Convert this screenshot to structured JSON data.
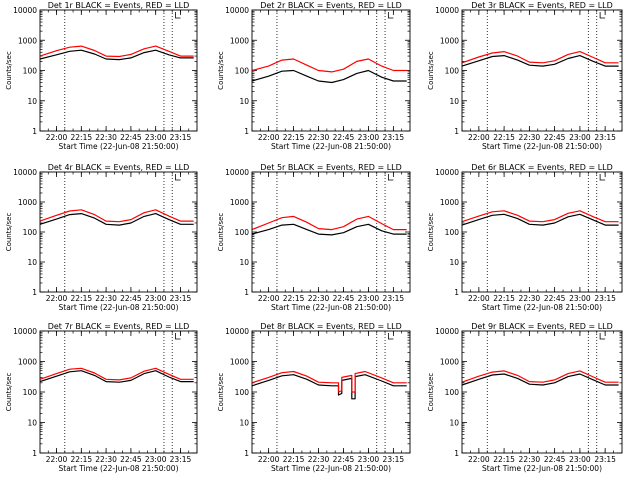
{
  "chart_data": [
    {
      "type": "line",
      "title": "Det 1r BLACK = Events, RED = LLD",
      "xlabel": "Start Time (22-Jun-08 21:50:00)",
      "ylabel": "Counts/sec",
      "y_scale": "log",
      "ylim": [
        1,
        10000
      ],
      "xlim": [
        "21:50",
        "23:25"
      ],
      "x_ticks": [
        "22:00",
        "22:15",
        "22:30",
        "22:45",
        "23:00",
        "23:15"
      ],
      "y_ticks": [
        "1",
        "10",
        "100",
        "1000",
        "10000"
      ],
      "series": [
        {
          "name": "Events",
          "color": "#000000",
          "x": [
            "21:50",
            "22:00",
            "22:08",
            "22:15",
            "22:23",
            "22:30",
            "22:38",
            "22:45",
            "22:53",
            "23:00",
            "23:08",
            "23:15",
            "23:23"
          ],
          "values": [
            240,
            330,
            430,
            470,
            350,
            240,
            230,
            260,
            390,
            470,
            330,
            260,
            260
          ]
        },
        {
          "name": "LLD",
          "color": "#ff0000",
          "x": [
            "21:50",
            "22:00",
            "22:08",
            "22:15",
            "22:23",
            "22:30",
            "22:38",
            "22:45",
            "22:53",
            "23:00",
            "23:08",
            "23:15",
            "23:23"
          ],
          "values": [
            300,
            450,
            590,
            640,
            460,
            300,
            290,
            340,
            520,
            640,
            430,
            300,
            300
          ]
        }
      ],
      "vlines": [
        "22:05",
        "23:05",
        "23:10"
      ]
    },
    {
      "type": "line",
      "title": "Det 2r BLACK = Events, RED = LLD",
      "xlabel": "Start Time (22-Jun-08 21:50:00)",
      "ylabel": "Counts/sec",
      "y_scale": "log",
      "ylim": [
        1,
        10000
      ],
      "xlim": [
        "21:50",
        "23:25"
      ],
      "x_ticks": [
        "22:00",
        "22:15",
        "22:30",
        "22:45",
        "23:00",
        "23:15"
      ],
      "y_ticks": [
        "1",
        "10",
        "100",
        "1000",
        "10000"
      ],
      "series": [
        {
          "name": "Events",
          "color": "#000000",
          "x": [
            "21:50",
            "22:00",
            "22:08",
            "22:15",
            "22:23",
            "22:30",
            "22:38",
            "22:45",
            "22:53",
            "23:00",
            "23:08",
            "23:15",
            "23:23"
          ],
          "values": [
            45,
            65,
            95,
            100,
            65,
            45,
            40,
            50,
            80,
            100,
            60,
            45,
            45
          ]
        },
        {
          "name": "LLD",
          "color": "#ff0000",
          "x": [
            "21:50",
            "22:00",
            "22:08",
            "22:15",
            "22:23",
            "22:30",
            "22:38",
            "22:45",
            "22:53",
            "23:00",
            "23:08",
            "23:15",
            "23:23"
          ],
          "values": [
            100,
            140,
            220,
            240,
            150,
            100,
            90,
            110,
            200,
            240,
            140,
            100,
            100
          ]
        }
      ],
      "vlines": [
        "22:05",
        "23:05",
        "23:10"
      ]
    },
    {
      "type": "line",
      "title": "Det 3r BLACK = Events, RED = LLD",
      "xlabel": "Start Time (22-Jun-08 21:50:00)",
      "ylabel": "Counts/sec",
      "y_scale": "log",
      "ylim": [
        1,
        10000
      ],
      "xlim": [
        "21:50",
        "23:25"
      ],
      "x_ticks": [
        "22:00",
        "22:15",
        "22:30",
        "22:45",
        "23:00",
        "23:15"
      ],
      "y_ticks": [
        "1",
        "10",
        "100",
        "1000",
        "10000"
      ],
      "series": [
        {
          "name": "Events",
          "color": "#000000",
          "x": [
            "21:50",
            "22:00",
            "22:08",
            "22:15",
            "22:23",
            "22:30",
            "22:38",
            "22:45",
            "22:53",
            "23:00",
            "23:08",
            "23:15",
            "23:23"
          ],
          "values": [
            140,
            210,
            290,
            310,
            220,
            150,
            140,
            160,
            250,
            310,
            200,
            140,
            140
          ]
        },
        {
          "name": "LLD",
          "color": "#ff0000",
          "x": [
            "21:50",
            "22:00",
            "22:08",
            "22:15",
            "22:23",
            "22:30",
            "22:38",
            "22:45",
            "22:53",
            "23:00",
            "23:08",
            "23:15",
            "23:23"
          ],
          "values": [
            180,
            280,
            380,
            420,
            300,
            190,
            180,
            210,
            340,
            420,
            270,
            180,
            180
          ]
        }
      ],
      "vlines": [
        "22:05",
        "23:05",
        "23:10"
      ]
    },
    {
      "type": "line",
      "title": "Det 4r BLACK = Events, RED = LLD",
      "xlabel": "Start Time (22-Jun-08 21:50:00)",
      "ylabel": "Counts/sec",
      "y_scale": "log",
      "ylim": [
        1,
        10000
      ],
      "xlim": [
        "21:50",
        "23:25"
      ],
      "x_ticks": [
        "22:00",
        "22:15",
        "22:30",
        "22:45",
        "23:00",
        "23:15"
      ],
      "y_ticks": [
        "1",
        "10",
        "100",
        "1000",
        "10000"
      ],
      "series": [
        {
          "name": "Events",
          "color": "#000000",
          "x": [
            "21:50",
            "22:00",
            "22:08",
            "22:15",
            "22:23",
            "22:30",
            "22:38",
            "22:45",
            "22:53",
            "23:00",
            "23:08",
            "23:15",
            "23:23"
          ],
          "values": [
            180,
            270,
            380,
            410,
            290,
            180,
            170,
            200,
            330,
            410,
            260,
            180,
            180
          ]
        },
        {
          "name": "LLD",
          "color": "#ff0000",
          "x": [
            "21:50",
            "22:00",
            "22:08",
            "22:15",
            "22:23",
            "22:30",
            "22:38",
            "22:45",
            "22:53",
            "23:00",
            "23:08",
            "23:15",
            "23:23"
          ],
          "values": [
            230,
            360,
            500,
            550,
            380,
            230,
            220,
            260,
            440,
            550,
            340,
            230,
            230
          ]
        }
      ],
      "vlines": [
        "22:05",
        "23:05",
        "23:10"
      ]
    },
    {
      "type": "line",
      "title": "Det 5r BLACK = Events, RED = LLD",
      "xlabel": "Start Time (22-Jun-08 21:50:00)",
      "ylabel": "Counts/sec",
      "y_scale": "log",
      "ylim": [
        1,
        10000
      ],
      "xlim": [
        "21:50",
        "23:25"
      ],
      "x_ticks": [
        "22:00",
        "22:15",
        "22:30",
        "22:45",
        "23:00",
        "23:15"
      ],
      "y_ticks": [
        "1",
        "10",
        "100",
        "1000",
        "10000"
      ],
      "series": [
        {
          "name": "Events",
          "color": "#000000",
          "x": [
            "21:50",
            "22:00",
            "22:08",
            "22:15",
            "22:23",
            "22:30",
            "22:38",
            "22:45",
            "22:53",
            "23:00",
            "23:08",
            "23:15",
            "23:23"
          ],
          "values": [
            85,
            120,
            170,
            180,
            120,
            85,
            80,
            95,
            150,
            180,
            110,
            85,
            85
          ]
        },
        {
          "name": "LLD",
          "color": "#ff0000",
          "x": [
            "21:50",
            "22:00",
            "22:08",
            "22:15",
            "22:23",
            "22:30",
            "22:38",
            "22:45",
            "22:53",
            "23:00",
            "23:08",
            "23:15",
            "23:23"
          ],
          "values": [
            120,
            200,
            300,
            330,
            210,
            130,
            120,
            150,
            270,
            330,
            190,
            120,
            120
          ]
        }
      ],
      "vlines": [
        "22:05",
        "23:05",
        "23:10"
      ]
    },
    {
      "type": "line",
      "title": "Det 6r BLACK = Events, RED = LLD",
      "xlabel": "Start Time (22-Jun-08 21:50:00)",
      "ylabel": "Counts/sec",
      "y_scale": "log",
      "ylim": [
        1,
        10000
      ],
      "xlim": [
        "21:50",
        "23:25"
      ],
      "x_ticks": [
        "22:00",
        "22:15",
        "22:30",
        "22:45",
        "23:00",
        "23:15"
      ],
      "y_ticks": [
        "1",
        "10",
        "100",
        "1000",
        "10000"
      ],
      "series": [
        {
          "name": "Events",
          "color": "#000000",
          "x": [
            "21:50",
            "22:00",
            "22:08",
            "22:15",
            "22:23",
            "22:30",
            "22:38",
            "22:45",
            "22:53",
            "23:00",
            "23:08",
            "23:15",
            "23:23"
          ],
          "values": [
            170,
            260,
            360,
            390,
            280,
            180,
            170,
            200,
            320,
            390,
            250,
            170,
            170
          ]
        },
        {
          "name": "LLD",
          "color": "#ff0000",
          "x": [
            "21:50",
            "22:00",
            "22:08",
            "22:15",
            "22:23",
            "22:30",
            "22:38",
            "22:45",
            "22:53",
            "23:00",
            "23:08",
            "23:15",
            "23:23"
          ],
          "values": [
            220,
            340,
            470,
            510,
            360,
            230,
            220,
            260,
            420,
            510,
            320,
            220,
            220
          ]
        }
      ],
      "vlines": [
        "22:05",
        "23:05",
        "23:10"
      ]
    },
    {
      "type": "line",
      "title": "Det 7r BLACK = Events, RED = LLD",
      "xlabel": "Start Time (22-Jun-08 21:50:00)",
      "ylabel": "Counts/sec",
      "y_scale": "log",
      "ylim": [
        1,
        10000
      ],
      "xlim": [
        "21:50",
        "23:25"
      ],
      "x_ticks": [
        "22:00",
        "22:15",
        "22:30",
        "22:45",
        "23:00",
        "23:15"
      ],
      "y_ticks": [
        "1",
        "10",
        "100",
        "1000",
        "10000"
      ],
      "series": [
        {
          "name": "Events",
          "color": "#000000",
          "x": [
            "21:50",
            "22:00",
            "22:08",
            "22:15",
            "22:23",
            "22:30",
            "22:38",
            "22:45",
            "22:53",
            "23:00",
            "23:08",
            "23:15",
            "23:23"
          ],
          "values": [
            220,
            330,
            460,
            500,
            350,
            220,
            210,
            240,
            400,
            500,
            310,
            220,
            220
          ]
        },
        {
          "name": "LLD",
          "color": "#ff0000",
          "x": [
            "21:50",
            "22:00",
            "22:08",
            "22:15",
            "22:23",
            "22:30",
            "22:38",
            "22:45",
            "22:53",
            "23:00",
            "23:08",
            "23:15",
            "23:23"
          ],
          "values": [
            260,
            400,
            560,
            600,
            420,
            260,
            250,
            290,
            480,
            600,
            380,
            260,
            260
          ]
        }
      ],
      "vlines": [
        "22:05",
        "23:05",
        "23:10"
      ]
    },
    {
      "type": "line",
      "title": "Det 8r BLACK = Events, RED = LLD",
      "xlabel": "Start Time (22-Jun-08 21:50:00)",
      "ylabel": "Counts/sec",
      "y_scale": "log",
      "ylim": [
        1,
        10000
      ],
      "xlim": [
        "21:50",
        "23:25"
      ],
      "x_ticks": [
        "22:00",
        "22:15",
        "22:30",
        "22:45",
        "23:00",
        "23:15"
      ],
      "y_ticks": [
        "1",
        "10",
        "100",
        "1000",
        "10000"
      ],
      "series": [
        {
          "name": "Events",
          "color": "#000000",
          "x": [
            "21:50",
            "22:00",
            "22:08",
            "22:15",
            "22:23",
            "22:30",
            "22:38",
            "22:42",
            "22:42",
            "22:44",
            "22:44",
            "22:50",
            "22:50",
            "22:52",
            "22:52",
            "22:58",
            "23:08",
            "23:15",
            "23:23"
          ],
          "values": [
            160,
            240,
            340,
            370,
            260,
            170,
            160,
            160,
            80,
            90,
            240,
            280,
            60,
            60,
            320,
            370,
            230,
            160,
            160
          ]
        },
        {
          "name": "LLD",
          "color": "#ff0000",
          "x": [
            "21:50",
            "22:00",
            "22:08",
            "22:15",
            "22:23",
            "22:30",
            "22:38",
            "22:42",
            "22:42",
            "22:44",
            "22:44",
            "22:50",
            "22:50",
            "22:52",
            "22:52",
            "22:58",
            "23:08",
            "23:15",
            "23:23"
          ],
          "values": [
            200,
            300,
            430,
            470,
            330,
            210,
            200,
            200,
            100,
            110,
            300,
            350,
            100,
            100,
            400,
            470,
            290,
            200,
            200
          ]
        }
      ],
      "vlines": [
        "22:05",
        "23:05",
        "23:10"
      ]
    },
    {
      "type": "line",
      "title": "Det 9r BLACK = Events, RED = LLD",
      "xlabel": "Start Time (22-Jun-08 21:50:00)",
      "ylabel": "Counts/sec",
      "y_scale": "log",
      "ylim": [
        1,
        10000
      ],
      "xlim": [
        "21:50",
        "23:25"
      ],
      "x_ticks": [
        "22:00",
        "22:15",
        "22:30",
        "22:45",
        "23:00",
        "23:15"
      ],
      "y_ticks": [
        "1",
        "10",
        "100",
        "1000",
        "10000"
      ],
      "series": [
        {
          "name": "Events",
          "color": "#000000",
          "x": [
            "21:50",
            "22:00",
            "22:08",
            "22:15",
            "22:23",
            "22:30",
            "22:38",
            "22:45",
            "22:53",
            "23:00",
            "23:08",
            "23:15",
            "23:23"
          ],
          "values": [
            170,
            260,
            360,
            390,
            280,
            180,
            170,
            200,
            320,
            390,
            250,
            170,
            170
          ]
        },
        {
          "name": "LLD",
          "color": "#ff0000",
          "x": [
            "21:50",
            "22:00",
            "22:08",
            "22:15",
            "22:23",
            "22:30",
            "22:38",
            "22:45",
            "22:53",
            "23:00",
            "23:08",
            "23:15",
            "23:23"
          ],
          "values": [
            210,
            330,
            450,
            490,
            350,
            220,
            210,
            250,
            400,
            490,
            310,
            210,
            210
          ]
        }
      ],
      "vlines": [
        "22:05",
        "23:05",
        "23:10"
      ]
    }
  ]
}
